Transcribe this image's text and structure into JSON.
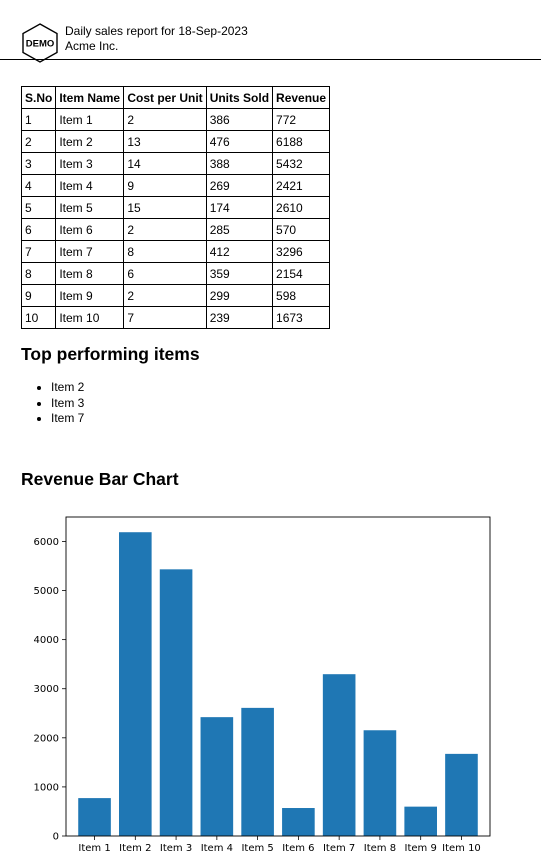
{
  "header": {
    "logo_text": "DEMO",
    "report_title": "Daily sales report for 18-Sep-2023",
    "company": "Acme Inc."
  },
  "table": {
    "headers": [
      "S.No",
      "Item Name",
      "Cost per Unit",
      "Units Sold",
      "Revenue"
    ],
    "rows": [
      [
        "1",
        "Item 1",
        "2",
        "386",
        "772"
      ],
      [
        "2",
        "Item 2",
        "13",
        "476",
        "6188"
      ],
      [
        "3",
        "Item 3",
        "14",
        "388",
        "5432"
      ],
      [
        "4",
        "Item 4",
        "9",
        "269",
        "2421"
      ],
      [
        "5",
        "Item 5",
        "15",
        "174",
        "2610"
      ],
      [
        "6",
        "Item 6",
        "2",
        "285",
        "570"
      ],
      [
        "7",
        "Item 7",
        "8",
        "412",
        "3296"
      ],
      [
        "8",
        "Item 8",
        "6",
        "359",
        "2154"
      ],
      [
        "9",
        "Item 9",
        "2",
        "299",
        "598"
      ],
      [
        "10",
        "Item 10",
        "7",
        "239",
        "1673"
      ]
    ]
  },
  "top_items": {
    "heading": "Top performing items",
    "items": [
      "Item 2",
      "Item 3",
      "Item 7"
    ]
  },
  "chart_section": {
    "heading": "Revenue Bar Chart"
  },
  "chart_data": {
    "type": "bar",
    "categories": [
      "Item 1",
      "Item 2",
      "Item 3",
      "Item 4",
      "Item 5",
      "Item 6",
      "Item 7",
      "Item 8",
      "Item 9",
      "Item 10"
    ],
    "values": [
      772,
      6188,
      5432,
      2421,
      2610,
      570,
      3296,
      2154,
      598,
      1673
    ],
    "ylim": [
      0,
      6498
    ],
    "yticks": [
      0,
      1000,
      2000,
      3000,
      4000,
      5000,
      6000
    ],
    "bar_color": "#1f77b4",
    "grid": false,
    "legend": "none"
  }
}
